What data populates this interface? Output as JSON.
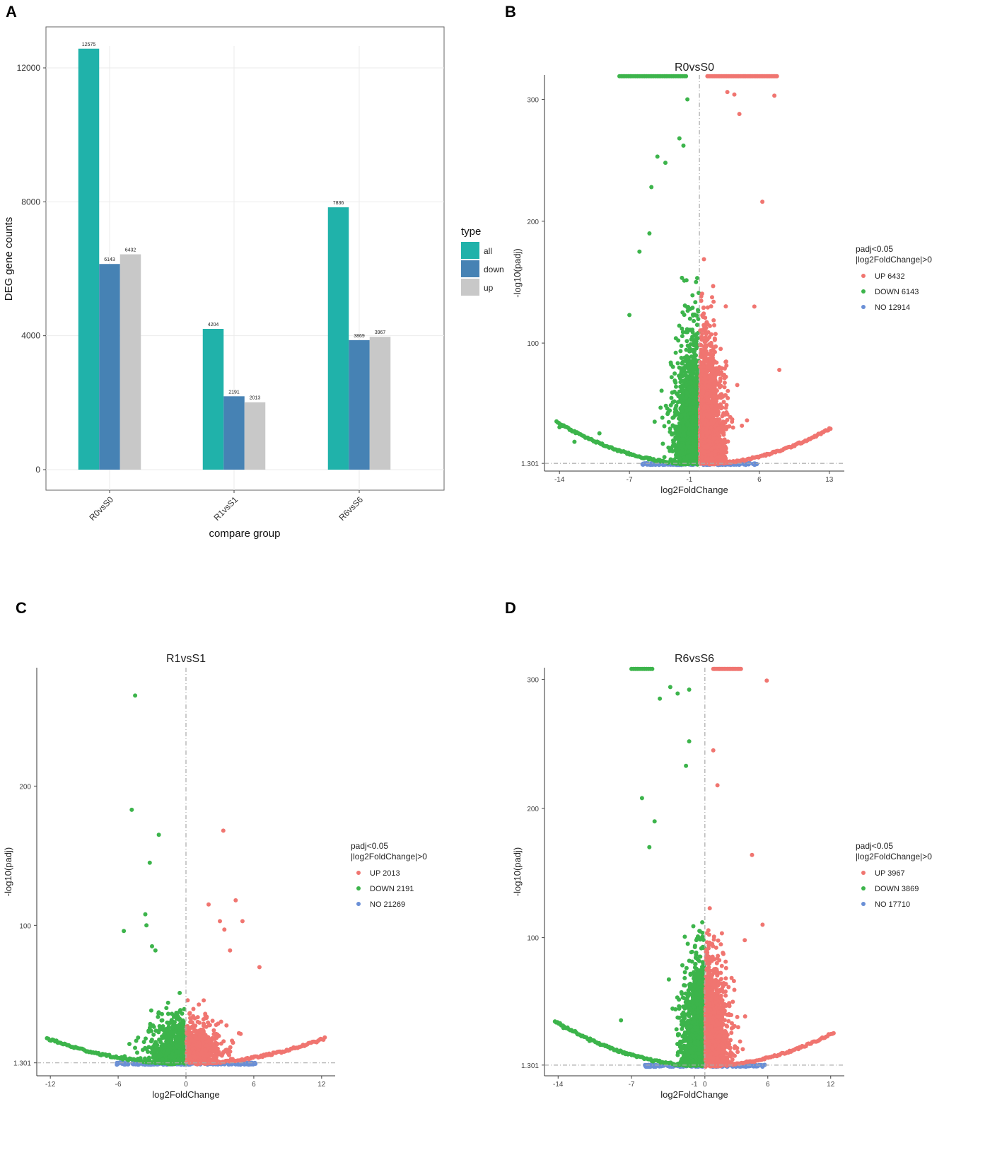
{
  "colors": {
    "all": "#20b2aa",
    "down": "#4682b4",
    "up": "#c8c8c8",
    "volcano_up": "#f07570",
    "volcano_down": "#3cb44b",
    "volcano_no": "#6a8fd6"
  },
  "chart_data": [
    {
      "panel": "A",
      "type": "bar",
      "title": "",
      "xlabel": "compare group",
      "ylabel": "DEG gene counts",
      "categories": [
        "R0vsS0",
        "R1vsS1",
        "R6vsS6"
      ],
      "ylim": [
        0,
        13000
      ],
      "yticks": [
        0,
        4000,
        8000,
        12000
      ],
      "series": [
        {
          "name": "all",
          "values": [
            12575,
            4204,
            7836
          ]
        },
        {
          "name": "down",
          "values": [
            6143,
            2191,
            3869
          ]
        },
        {
          "name": "up",
          "values": [
            6432,
            2013,
            3967
          ]
        }
      ],
      "legend": {
        "title": "type",
        "entries": [
          "all",
          "down",
          "up"
        ],
        "position": "right"
      }
    },
    {
      "panel": "B",
      "type": "scatter",
      "title": "R0vsS0",
      "xlabel": "log2FoldChange",
      "ylabel": "-log10(padj)",
      "xlim": [
        -15.5,
        14.5
      ],
      "ylim": [
        -5,
        320
      ],
      "xticks": [
        -14,
        -7,
        -1,
        6,
        13
      ],
      "yticks": [
        1.301,
        100,
        200,
        300
      ],
      "threshold_y": 1.301,
      "threshold_x": 0,
      "legend": {
        "title_line1": "padj<0.05",
        "title_line2": "|log2FoldChange|>0",
        "entries": [
          "UP 6432",
          "DOWN 6143",
          "NO 12914"
        ],
        "position": "right"
      },
      "counts": {
        "up": 6432,
        "down": 6143,
        "no": 12914
      }
    },
    {
      "panel": "C",
      "type": "scatter",
      "title": "R1vsS1",
      "xlabel": "log2FoldChange",
      "ylabel": "-log10(padj)",
      "xlim": [
        -13.2,
        13.2
      ],
      "ylim": [
        -8,
        285
      ],
      "xticks": [
        -12,
        -6,
        0,
        6,
        12
      ],
      "yticks": [
        1.301,
        100,
        200
      ],
      "threshold_y": 1.301,
      "threshold_x": 0,
      "legend": {
        "title_line1": "padj<0.05",
        "title_line2": "|log2FoldChange|>0",
        "entries": [
          "UP 2013",
          "DOWN 2191",
          "NO 21269"
        ],
        "position": "right"
      },
      "counts": {
        "up": 2013,
        "down": 2191,
        "no": 21269
      }
    },
    {
      "panel": "D",
      "type": "scatter",
      "title": "R6vsS6",
      "xlabel": "log2FoldChange",
      "ylabel": "-log10(padj)",
      "xlim": [
        -15.3,
        13.3
      ],
      "ylim": [
        -7,
        309
      ],
      "xticks": [
        -14,
        -7,
        -1,
        0,
        6,
        12
      ],
      "yticks": [
        1.301,
        100,
        200,
        300
      ],
      "threshold_y": 1.301,
      "threshold_x": 0,
      "legend": {
        "title_line1": "padj<0.05",
        "title_line2": "|log2FoldChange|>0",
        "entries": [
          "UP 3967",
          "DOWN 3869",
          "NO 17710"
        ],
        "position": "right"
      },
      "counts": {
        "up": 3967,
        "down": 3869,
        "no": 17710
      }
    }
  ],
  "panel_labels": [
    "A",
    "B",
    "C",
    "D"
  ]
}
